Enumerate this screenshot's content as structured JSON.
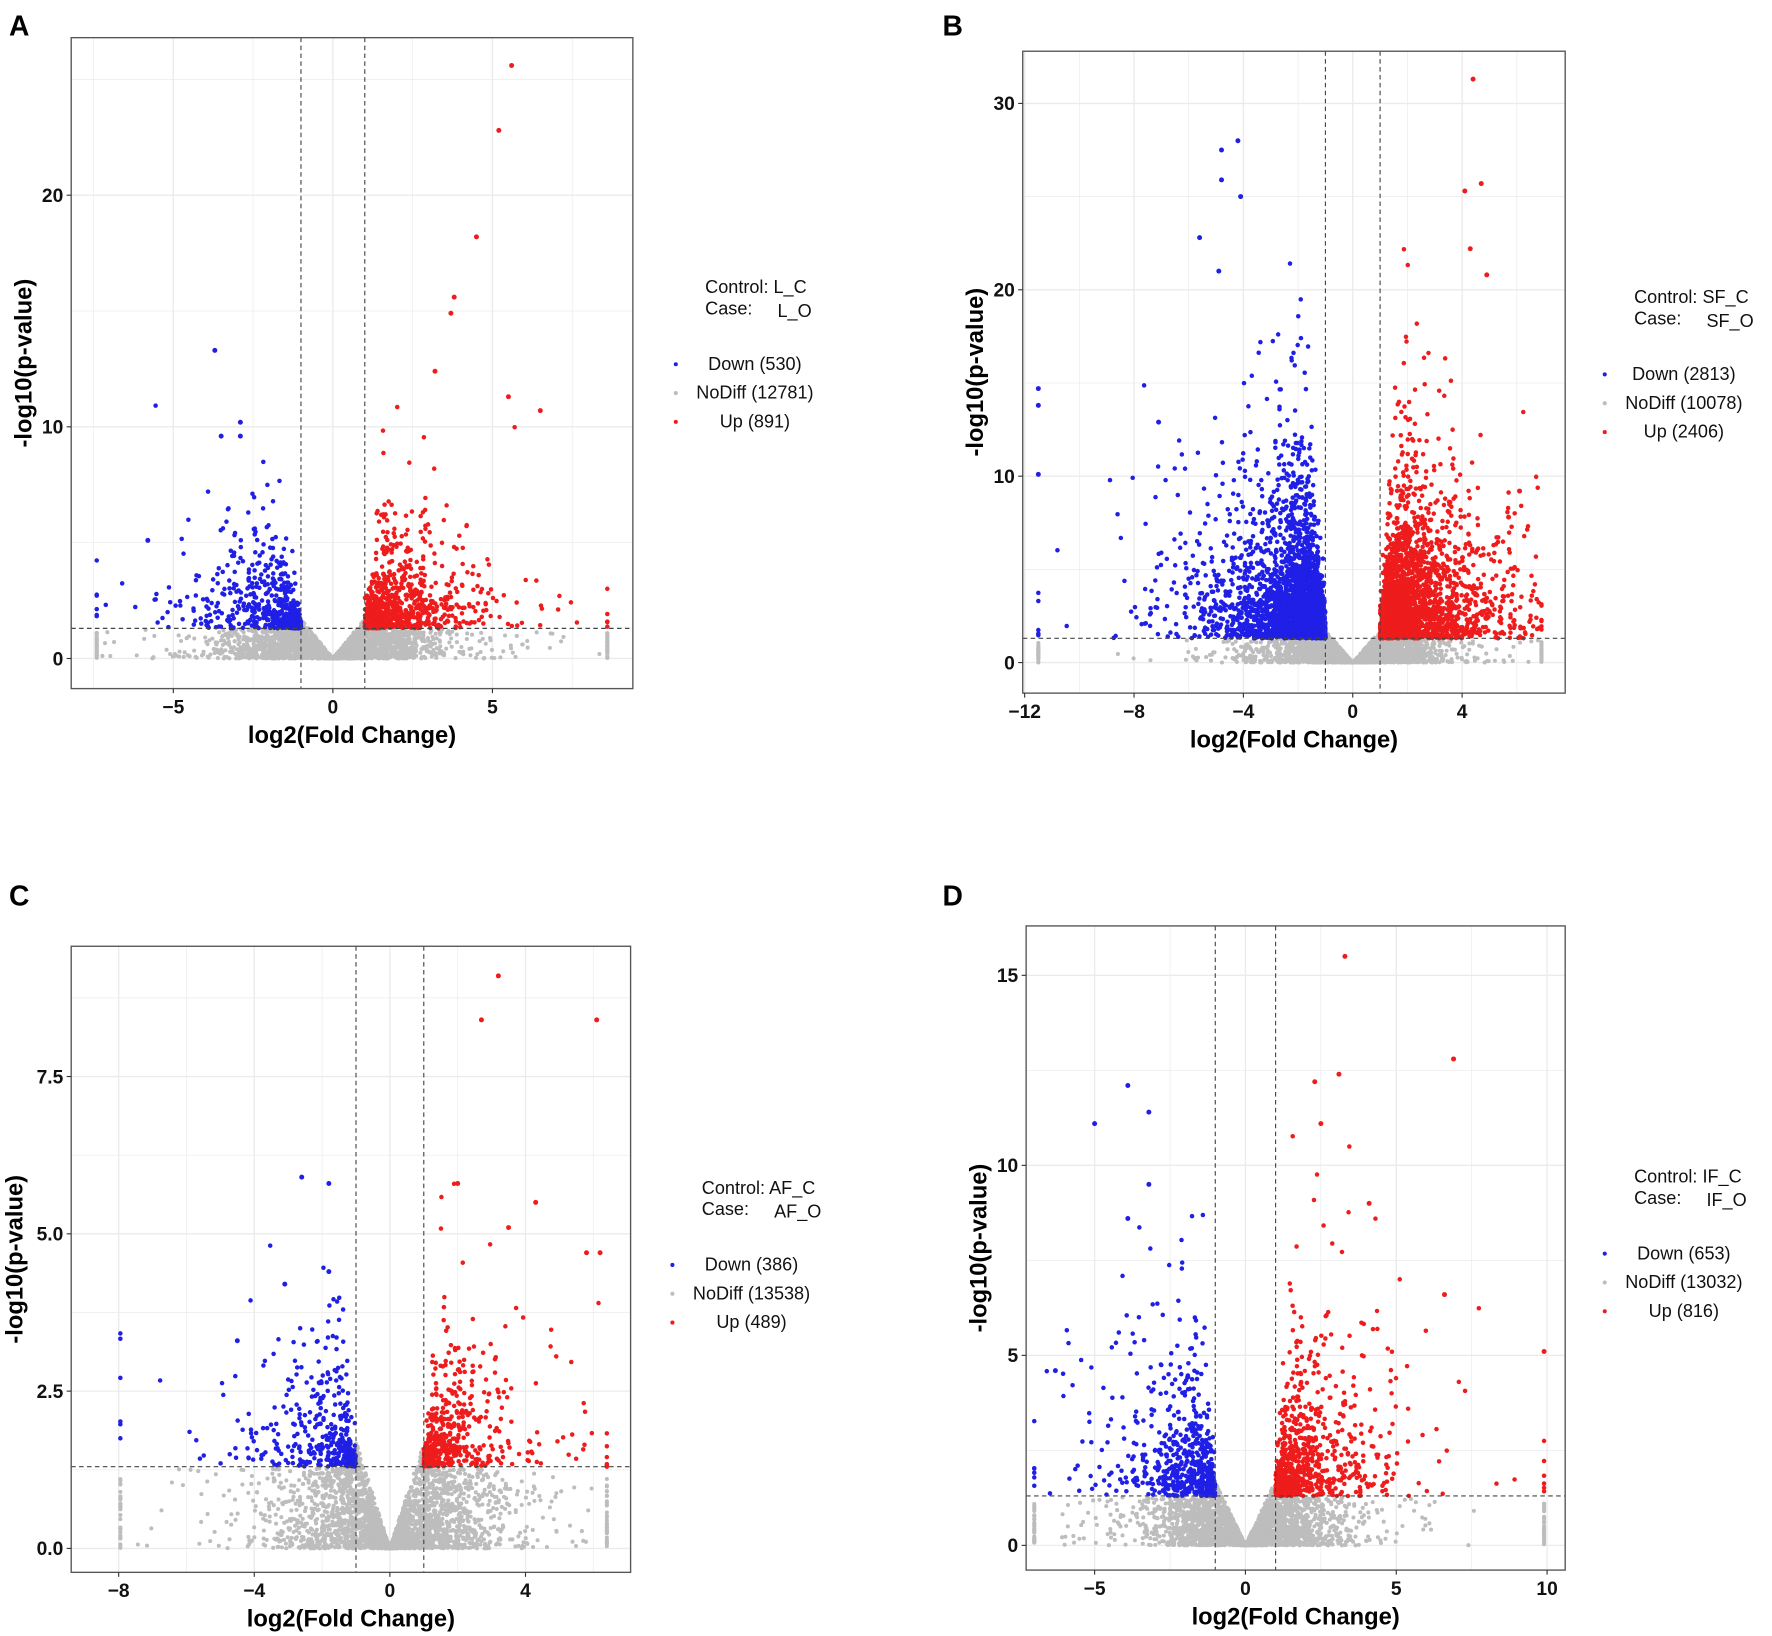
{
  "colors": {
    "down": "#1f1fe6",
    "nodiff": "#bdbdbd",
    "up": "#ee1c1c",
    "grid": "#ebebeb",
    "border": "#555555",
    "threshold": "#444444"
  },
  "chart_data": [
    {
      "type": "scatter",
      "panel": "A",
      "xlabel": "log2(Fold Change)",
      "ylabel": "-log10(p-value)",
      "xlim": [
        -8.2,
        9.4
      ],
      "ylim": [
        -1.3,
        26.8
      ],
      "xticks": [
        -5,
        0,
        5
      ],
      "xtick_labels": [
        "−5",
        "0",
        "5"
      ],
      "yticks": [
        0,
        10,
        20
      ],
      "ytick_labels": [
        "0",
        "10",
        "20"
      ],
      "thresholds": {
        "log2fc": [
          -1,
          1
        ],
        "neg_log10_p": 1.3
      },
      "legend": {
        "placement": "right",
        "control": "Control: L_C",
        "case_label": "Case:",
        "case": "L_O",
        "entries": [
          {
            "label": "Down (530)",
            "group": "down",
            "count": 530
          },
          {
            "label": "NoDiff (12781)",
            "group": "nodiff",
            "count": 12781
          },
          {
            "label": "Up (891)",
            "group": "up",
            "count": 891
          }
        ]
      },
      "x_extremes": [
        -7.4,
        8.6
      ],
      "notable_points": {
        "up": [
          [
            5.6,
            25.6
          ],
          [
            5.2,
            22.8
          ],
          [
            4.5,
            18.2
          ],
          [
            3.8,
            15.6
          ],
          [
            3.7,
            14.9
          ],
          [
            3.2,
            12.4
          ],
          [
            5.5,
            11.3
          ],
          [
            6.5,
            10.7
          ]
        ],
        "down": [
          [
            -3.7,
            13.3
          ],
          [
            -2.9,
            10.2
          ],
          [
            -3.5,
            9.6
          ],
          [
            -2.9,
            9.6
          ],
          [
            -5.8,
            5.1
          ]
        ]
      },
      "sig_scale": 1.4
    },
    {
      "type": "scatter",
      "panel": "B",
      "xlabel": "log2(Fold Change)",
      "ylabel": "-log10(p-value)",
      "xlim": [
        -12.07,
        7.77
      ],
      "ylim": [
        -1.64,
        32.8
      ],
      "xticks": [
        -12,
        -8,
        -4,
        0,
        4
      ],
      "xtick_labels": [
        "−12",
        "−8",
        "−4",
        "0",
        "4"
      ],
      "yticks": [
        0,
        10,
        20,
        30
      ],
      "ytick_labels": [
        "0",
        "10",
        "20",
        "30"
      ],
      "thresholds": {
        "log2fc": [
          -1,
          1
        ],
        "neg_log10_p": 1.3
      },
      "legend": {
        "placement": "right",
        "control": "Control: SF_C",
        "case_label": "Case:",
        "case": "SF_O",
        "entries": [
          {
            "label": "Down (2813)",
            "group": "down",
            "count": 2813
          },
          {
            "label": "NoDiff (10078)",
            "group": "nodiff",
            "count": 10078
          },
          {
            "label": "Up (2406)",
            "group": "up",
            "count": 2406
          }
        ]
      },
      "x_extremes": [
        -11.5,
        6.9
      ],
      "notable_points": {
        "up": [
          [
            4.4,
            31.3
          ],
          [
            4.7,
            25.7
          ],
          [
            4.1,
            25.3
          ],
          [
            4.3,
            22.2
          ],
          [
            4.9,
            20.8
          ],
          [
            6.1,
            9.2
          ],
          [
            5.7,
            7.8
          ]
        ],
        "down": [
          [
            -4.2,
            28.0
          ],
          [
            -4.8,
            27.5
          ],
          [
            -4.8,
            25.9
          ],
          [
            -4.1,
            25.0
          ],
          [
            -5.6,
            22.8
          ],
          [
            -4.9,
            21.0
          ],
          [
            -11.5,
            14.7
          ],
          [
            -11.5,
            13.8
          ],
          [
            -7.1,
            12.9
          ],
          [
            -11.5,
            10.1
          ]
        ]
      },
      "sig_scale": 2.8
    },
    {
      "type": "scatter",
      "panel": "C",
      "xlabel": "log2(Fold Change)",
      "ylabel": "-log10(p-value)",
      "xlim": [
        -9.4,
        7.1
      ],
      "ylim": [
        -0.38,
        9.57
      ],
      "xticks": [
        -8,
        -4,
        0,
        4
      ],
      "xtick_labels": [
        "−8",
        "−4",
        "0",
        "4"
      ],
      "yticks": [
        0,
        2.5,
        5,
        7.5
      ],
      "ytick_labels": [
        "0.0",
        "2.5",
        "5.0",
        "7.5"
      ],
      "thresholds": {
        "log2fc": [
          -1,
          1
        ],
        "neg_log10_p": 1.3
      },
      "legend": {
        "placement": "right",
        "control": "Control: AF_C",
        "case_label": "Case:",
        "case": "AF_O",
        "entries": [
          {
            "label": "Down (386)",
            "group": "down",
            "count": 386
          },
          {
            "label": "NoDiff (13538)",
            "group": "nodiff",
            "count": 13538
          },
          {
            "label": "Up (489)",
            "group": "up",
            "count": 489
          }
        ]
      },
      "x_extremes": [
        -7.95,
        6.4
      ],
      "notable_points": {
        "up": [
          [
            3.2,
            9.1
          ],
          [
            2.7,
            8.4
          ],
          [
            6.1,
            8.4
          ],
          [
            2.0,
            5.8
          ],
          [
            4.3,
            5.5
          ],
          [
            3.5,
            5.1
          ],
          [
            5.8,
            4.7
          ],
          [
            6.2,
            4.7
          ]
        ],
        "down": [
          [
            -2.6,
            5.9
          ],
          [
            -1.8,
            5.8
          ],
          [
            -4.5,
            3.3
          ],
          [
            -1.8,
            4.4
          ],
          [
            -3.1,
            4.2
          ]
        ]
      },
      "sig_scale": 0.8
    },
    {
      "type": "scatter",
      "panel": "D",
      "xlabel": "log2(Fold Change)",
      "ylabel": "-log10(p-value)",
      "xlim": [
        -7.27,
        10.6
      ],
      "ylim": [
        -0.65,
        16.3
      ],
      "xticks": [
        -5,
        0,
        5,
        10
      ],
      "xtick_labels": [
        "−5",
        "0",
        "5",
        "10"
      ],
      "yticks": [
        0,
        5,
        10,
        15
      ],
      "ytick_labels": [
        "0",
        "5",
        "10",
        "15"
      ],
      "thresholds": {
        "log2fc": [
          -1,
          1
        ],
        "neg_log10_p": 1.3
      },
      "legend": {
        "placement": "right",
        "control": "Control: IF_C",
        "case_label": "Case:",
        "case": "IF_O",
        "entries": [
          {
            "label": "Down (653)",
            "group": "down",
            "count": 653
          },
          {
            "label": "NoDiff (13032)",
            "group": "nodiff",
            "count": 13032
          },
          {
            "label": "Up (816)",
            "group": "up",
            "count": 816
          }
        ]
      },
      "x_extremes": [
        -7.0,
        9.9
      ],
      "notable_points": {
        "up": [
          [
            3.3,
            15.5
          ],
          [
            6.9,
            12.8
          ],
          [
            3.1,
            12.4
          ],
          [
            2.3,
            12.2
          ],
          [
            2.5,
            11.1
          ],
          [
            4.1,
            9.0
          ],
          [
            6.6,
            6.6
          ],
          [
            9.9,
            5.1
          ]
        ],
        "down": [
          [
            -3.9,
            12.1
          ],
          [
            -3.2,
            11.4
          ],
          [
            -5.0,
            11.1
          ],
          [
            -3.2,
            9.5
          ],
          [
            -3.9,
            8.6
          ],
          [
            -6.3,
            4.6
          ]
        ]
      },
      "sig_scale": 1.5
    }
  ]
}
